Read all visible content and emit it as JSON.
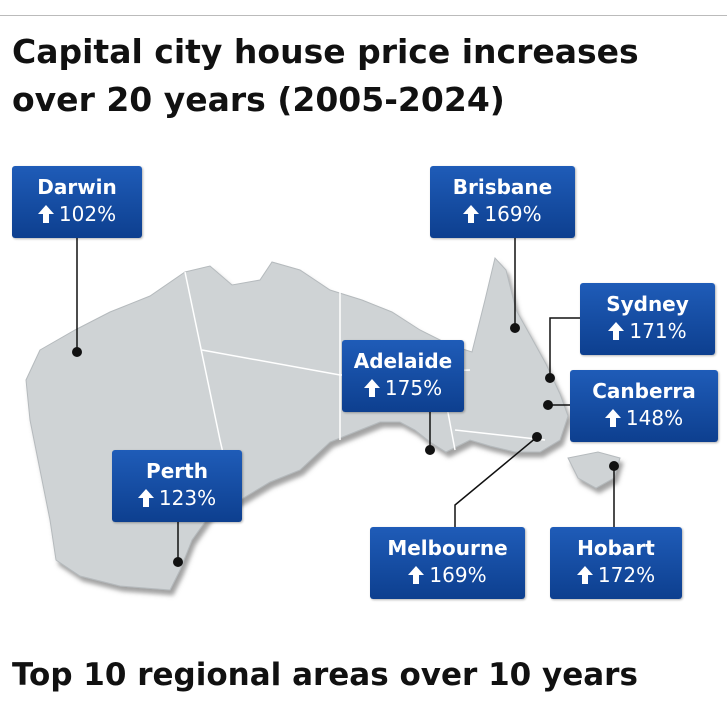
{
  "header": {
    "title": "Capital city house price increases over 20 years (2005-2024)"
  },
  "cities": [
    {
      "name": "Darwin",
      "change": "102%"
    },
    {
      "name": "Brisbane",
      "change": "169%"
    },
    {
      "name": "Sydney",
      "change": "171%"
    },
    {
      "name": "Adelaide",
      "change": "175%"
    },
    {
      "name": "Canberra",
      "change": "148%"
    },
    {
      "name": "Perth",
      "change": "123%"
    },
    {
      "name": "Melbourne",
      "change": "169%"
    },
    {
      "name": "Hobart",
      "change": "172%"
    }
  ],
  "footer": {
    "heading": "Top 10 regional areas over 10 years"
  }
}
